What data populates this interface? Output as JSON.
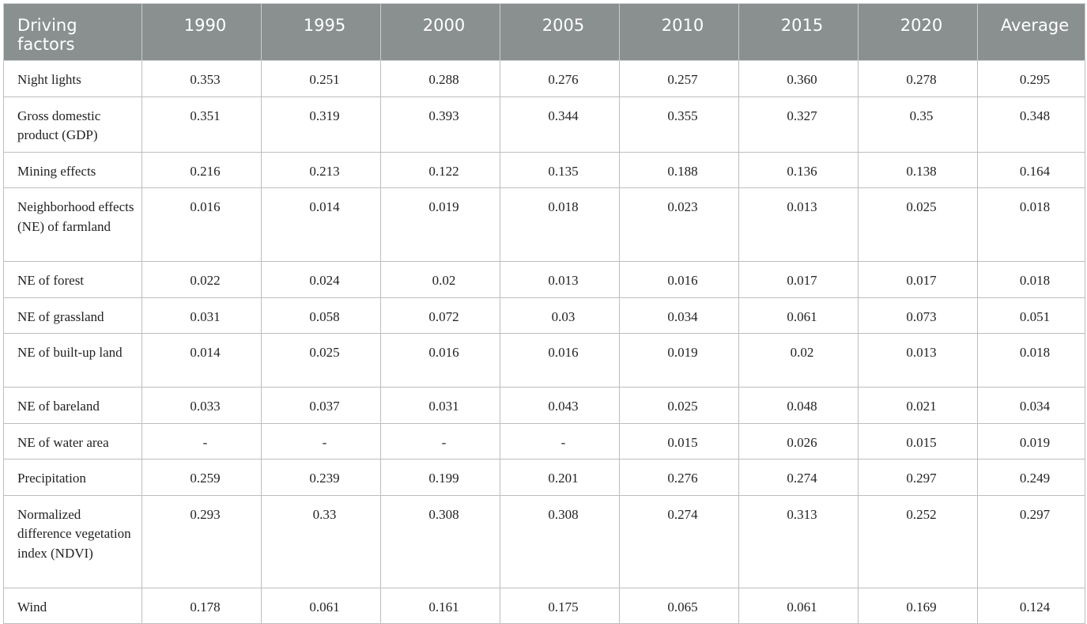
{
  "table": {
    "headers": [
      "Driving factors",
      "1990",
      "1995",
      "2000",
      "2005",
      "2010",
      "2015",
      "2020",
      "Average"
    ],
    "rows": [
      {
        "label": "Night lights",
        "values": [
          "0.353",
          "0.251",
          "0.288",
          "0.276",
          "0.257",
          "0.360",
          "0.278",
          "0.295"
        ]
      },
      {
        "label": "Gross domestic product (GDP)",
        "values": [
          "0.351",
          "0.319",
          "0.393",
          "0.344",
          "0.355",
          "0.327",
          "0.35",
          "0.348"
        ]
      },
      {
        "label": "Mining effects",
        "values": [
          "0.216",
          "0.213",
          "0.122",
          "0.135",
          "0.188",
          "0.136",
          "0.138",
          "0.164"
        ]
      },
      {
        "label": "Neighborhood effects (NE) of farmland",
        "values": [
          "0.016",
          "0.014",
          "0.019",
          "0.018",
          "0.023",
          "0.013",
          "0.025",
          "0.018"
        ]
      },
      {
        "label": "NE of forest",
        "values": [
          "0.022",
          "0.024",
          "0.02",
          "0.013",
          "0.016",
          "0.017",
          "0.017",
          "0.018"
        ]
      },
      {
        "label": "NE of grassland",
        "values": [
          "0.031",
          "0.058",
          "0.072",
          "0.03",
          "0.034",
          "0.061",
          "0.073",
          "0.051"
        ]
      },
      {
        "label": "NE of built-up land",
        "values": [
          "0.014",
          "0.025",
          "0.016",
          "0.016",
          "0.019",
          "0.02",
          "0.013",
          "0.018"
        ]
      },
      {
        "label": "NE of bareland",
        "values": [
          "0.033",
          "0.037",
          "0.031",
          "0.043",
          "0.025",
          "0.048",
          "0.021",
          "0.034"
        ]
      },
      {
        "label": "NE of water area",
        "values": [
          "-",
          "-",
          "-",
          "-",
          "0.015",
          "0.026",
          "0.015",
          "0.019"
        ]
      },
      {
        "label": "Precipitation",
        "values": [
          "0.259",
          "0.239",
          "0.199",
          "0.201",
          "0.276",
          "0.274",
          "0.297",
          "0.249"
        ]
      },
      {
        "label": "Normalized difference vegetation index (NDVI)",
        "values": [
          "0.293",
          "0.33",
          "0.308",
          "0.308",
          "0.274",
          "0.313",
          "0.252",
          "0.297"
        ]
      },
      {
        "label": "Wind",
        "values": [
          "0.178",
          "0.061",
          "0.161",
          "0.175",
          "0.065",
          "0.061",
          "0.169",
          "0.124"
        ]
      }
    ]
  }
}
